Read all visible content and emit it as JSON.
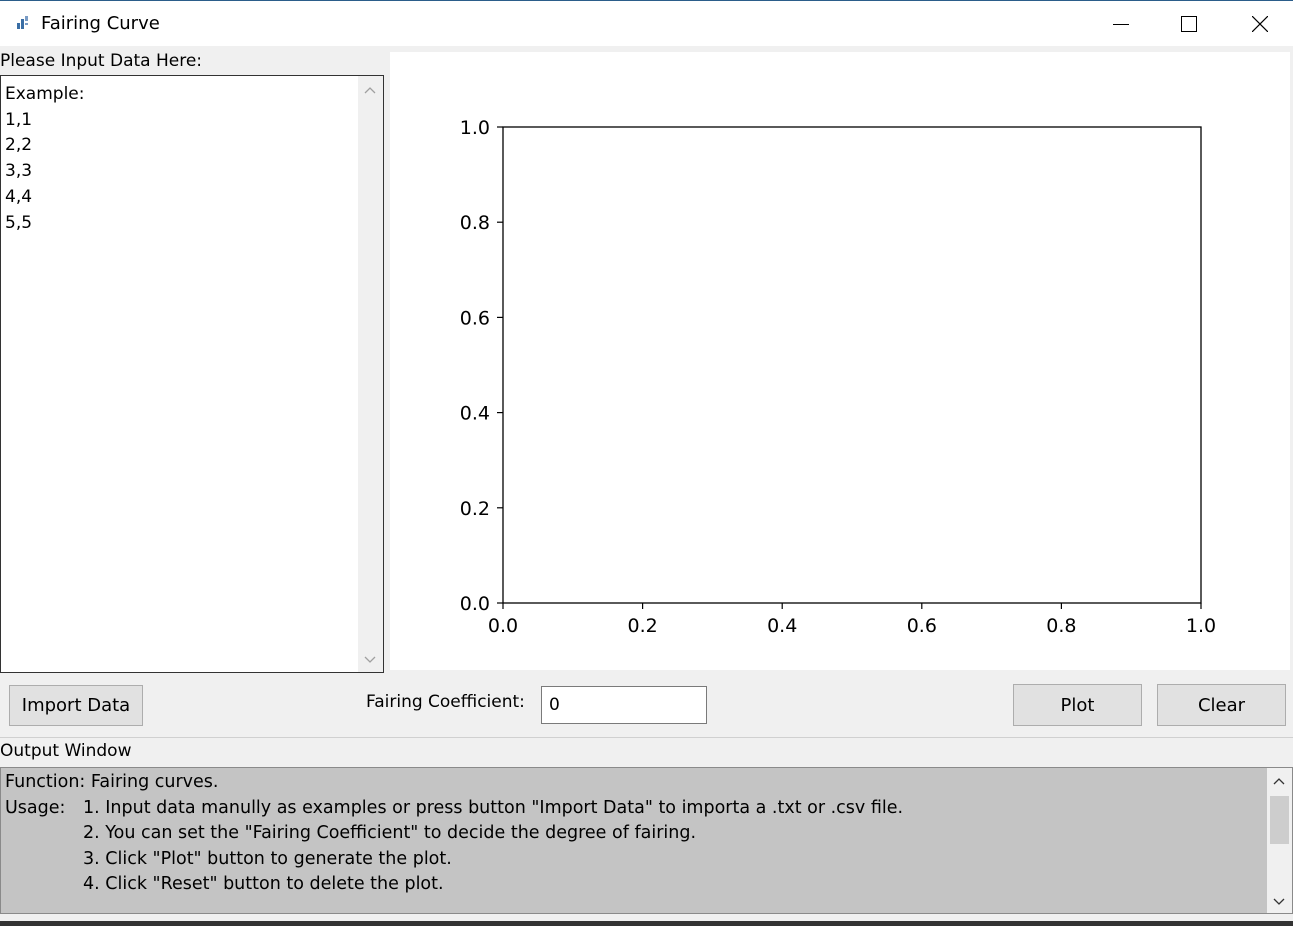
{
  "window": {
    "title": "Fairing Curve",
    "controls": [
      "minimize-icon",
      "maximize-icon",
      "close-icon"
    ]
  },
  "input_panel": {
    "label": "Please Input Data Here:",
    "text_lines": [
      "Example:",
      "1,1",
      "2,2",
      "3,3",
      "4,4",
      "5,5"
    ]
  },
  "controls": {
    "import_label": "Import Data",
    "coef_label": "Fairing Coefficient:",
    "coef_value": "0",
    "plot_label": "Plot",
    "clear_label": "Clear"
  },
  "output_panel": {
    "label": "Output Window",
    "function_line": "Function: Fairing curves.",
    "usage_prefix": "Usage:",
    "usage_lines": [
      "1. Input data manully as examples or press button \"Import Data\" to importa a .txt or .csv file.",
      "2. You can set the \"Fairing Coefficient\" to decide the degree of fairing.",
      "3. Click \"Plot\" button to generate the plot.",
      "4. Click \"Reset\" button to delete the plot."
    ]
  },
  "chart_data": {
    "type": "line",
    "title": "",
    "xlabel": "",
    "ylabel": "",
    "xlim": [
      0.0,
      1.0
    ],
    "ylim": [
      0.0,
      1.0
    ],
    "xticks": [
      "0.0",
      "0.2",
      "0.4",
      "0.6",
      "0.8",
      "1.0"
    ],
    "yticks": [
      "0.0",
      "0.2",
      "0.4",
      "0.6",
      "0.8",
      "1.0"
    ],
    "series": [],
    "grid": false
  }
}
